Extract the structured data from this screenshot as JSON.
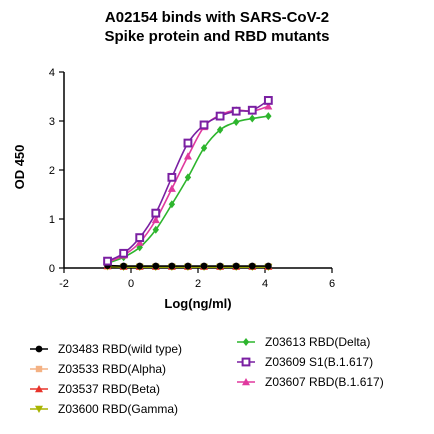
{
  "chart_data": {
    "type": "scatter",
    "title_line1": "A02154 binds with SARS-CoV-2",
    "title_line2": "Spike protein and RBD mutants",
    "xlabel": "Log(ng/ml)",
    "ylabel": "OD 450",
    "xlim": [
      -2,
      6
    ],
    "ylim": [
      0,
      4
    ],
    "xticks": [
      -2,
      0,
      2,
      4,
      6
    ],
    "yticks": [
      0,
      1,
      2,
      3,
      4
    ],
    "x": [
      -0.7,
      -0.22,
      0.26,
      0.74,
      1.22,
      1.7,
      2.18,
      2.66,
      3.14,
      3.62,
      4.1
    ],
    "series": [
      {
        "name": "Z03483 RBD(wild type)",
        "color": "#000000",
        "marker": "circle",
        "values": [
          0.05,
          0.04,
          0.04,
          0.04,
          0.04,
          0.04,
          0.04,
          0.04,
          0.04,
          0.04,
          0.04
        ]
      },
      {
        "name": "Z03533 RBD(Alpha)",
        "color": "#f4b183",
        "marker": "square",
        "values": [
          0.04,
          0.03,
          0.03,
          0.03,
          0.03,
          0.03,
          0.03,
          0.03,
          0.03,
          0.03,
          0.03
        ]
      },
      {
        "name": "Z03537 RBD(Beta)",
        "color": "#e8332a",
        "marker": "triangle-up",
        "values": [
          0.04,
          0.03,
          0.03,
          0.03,
          0.03,
          0.03,
          0.03,
          0.03,
          0.03,
          0.03,
          0.03
        ]
      },
      {
        "name": "Z03600 RBD(Gamma)",
        "color": "#a8b400",
        "marker": "triangle-down",
        "values": [
          0.03,
          0.02,
          0.02,
          0.02,
          0.02,
          0.02,
          0.02,
          0.02,
          0.02,
          0.02,
          0.02
        ]
      },
      {
        "name": "Z03613 RBD(Delta)",
        "color": "#2db52d",
        "marker": "diamond",
        "values": [
          0.1,
          0.22,
          0.42,
          0.78,
          1.3,
          1.85,
          2.45,
          2.82,
          2.98,
          3.05,
          3.1
        ]
      },
      {
        "name": "Z03609 S1(B.1.617)",
        "color": "#7a1fa2",
        "marker": "square-open",
        "values": [
          0.14,
          0.3,
          0.62,
          1.12,
          1.85,
          2.55,
          2.92,
          3.1,
          3.2,
          3.22,
          3.42
        ]
      },
      {
        "name": "Z03607 RBD(B.1.617)",
        "color": "#e0399e",
        "marker": "triangle-up",
        "values": [
          0.12,
          0.26,
          0.52,
          0.98,
          1.62,
          2.28,
          2.88,
          3.12,
          3.22,
          3.2,
          3.3
        ]
      }
    ]
  }
}
